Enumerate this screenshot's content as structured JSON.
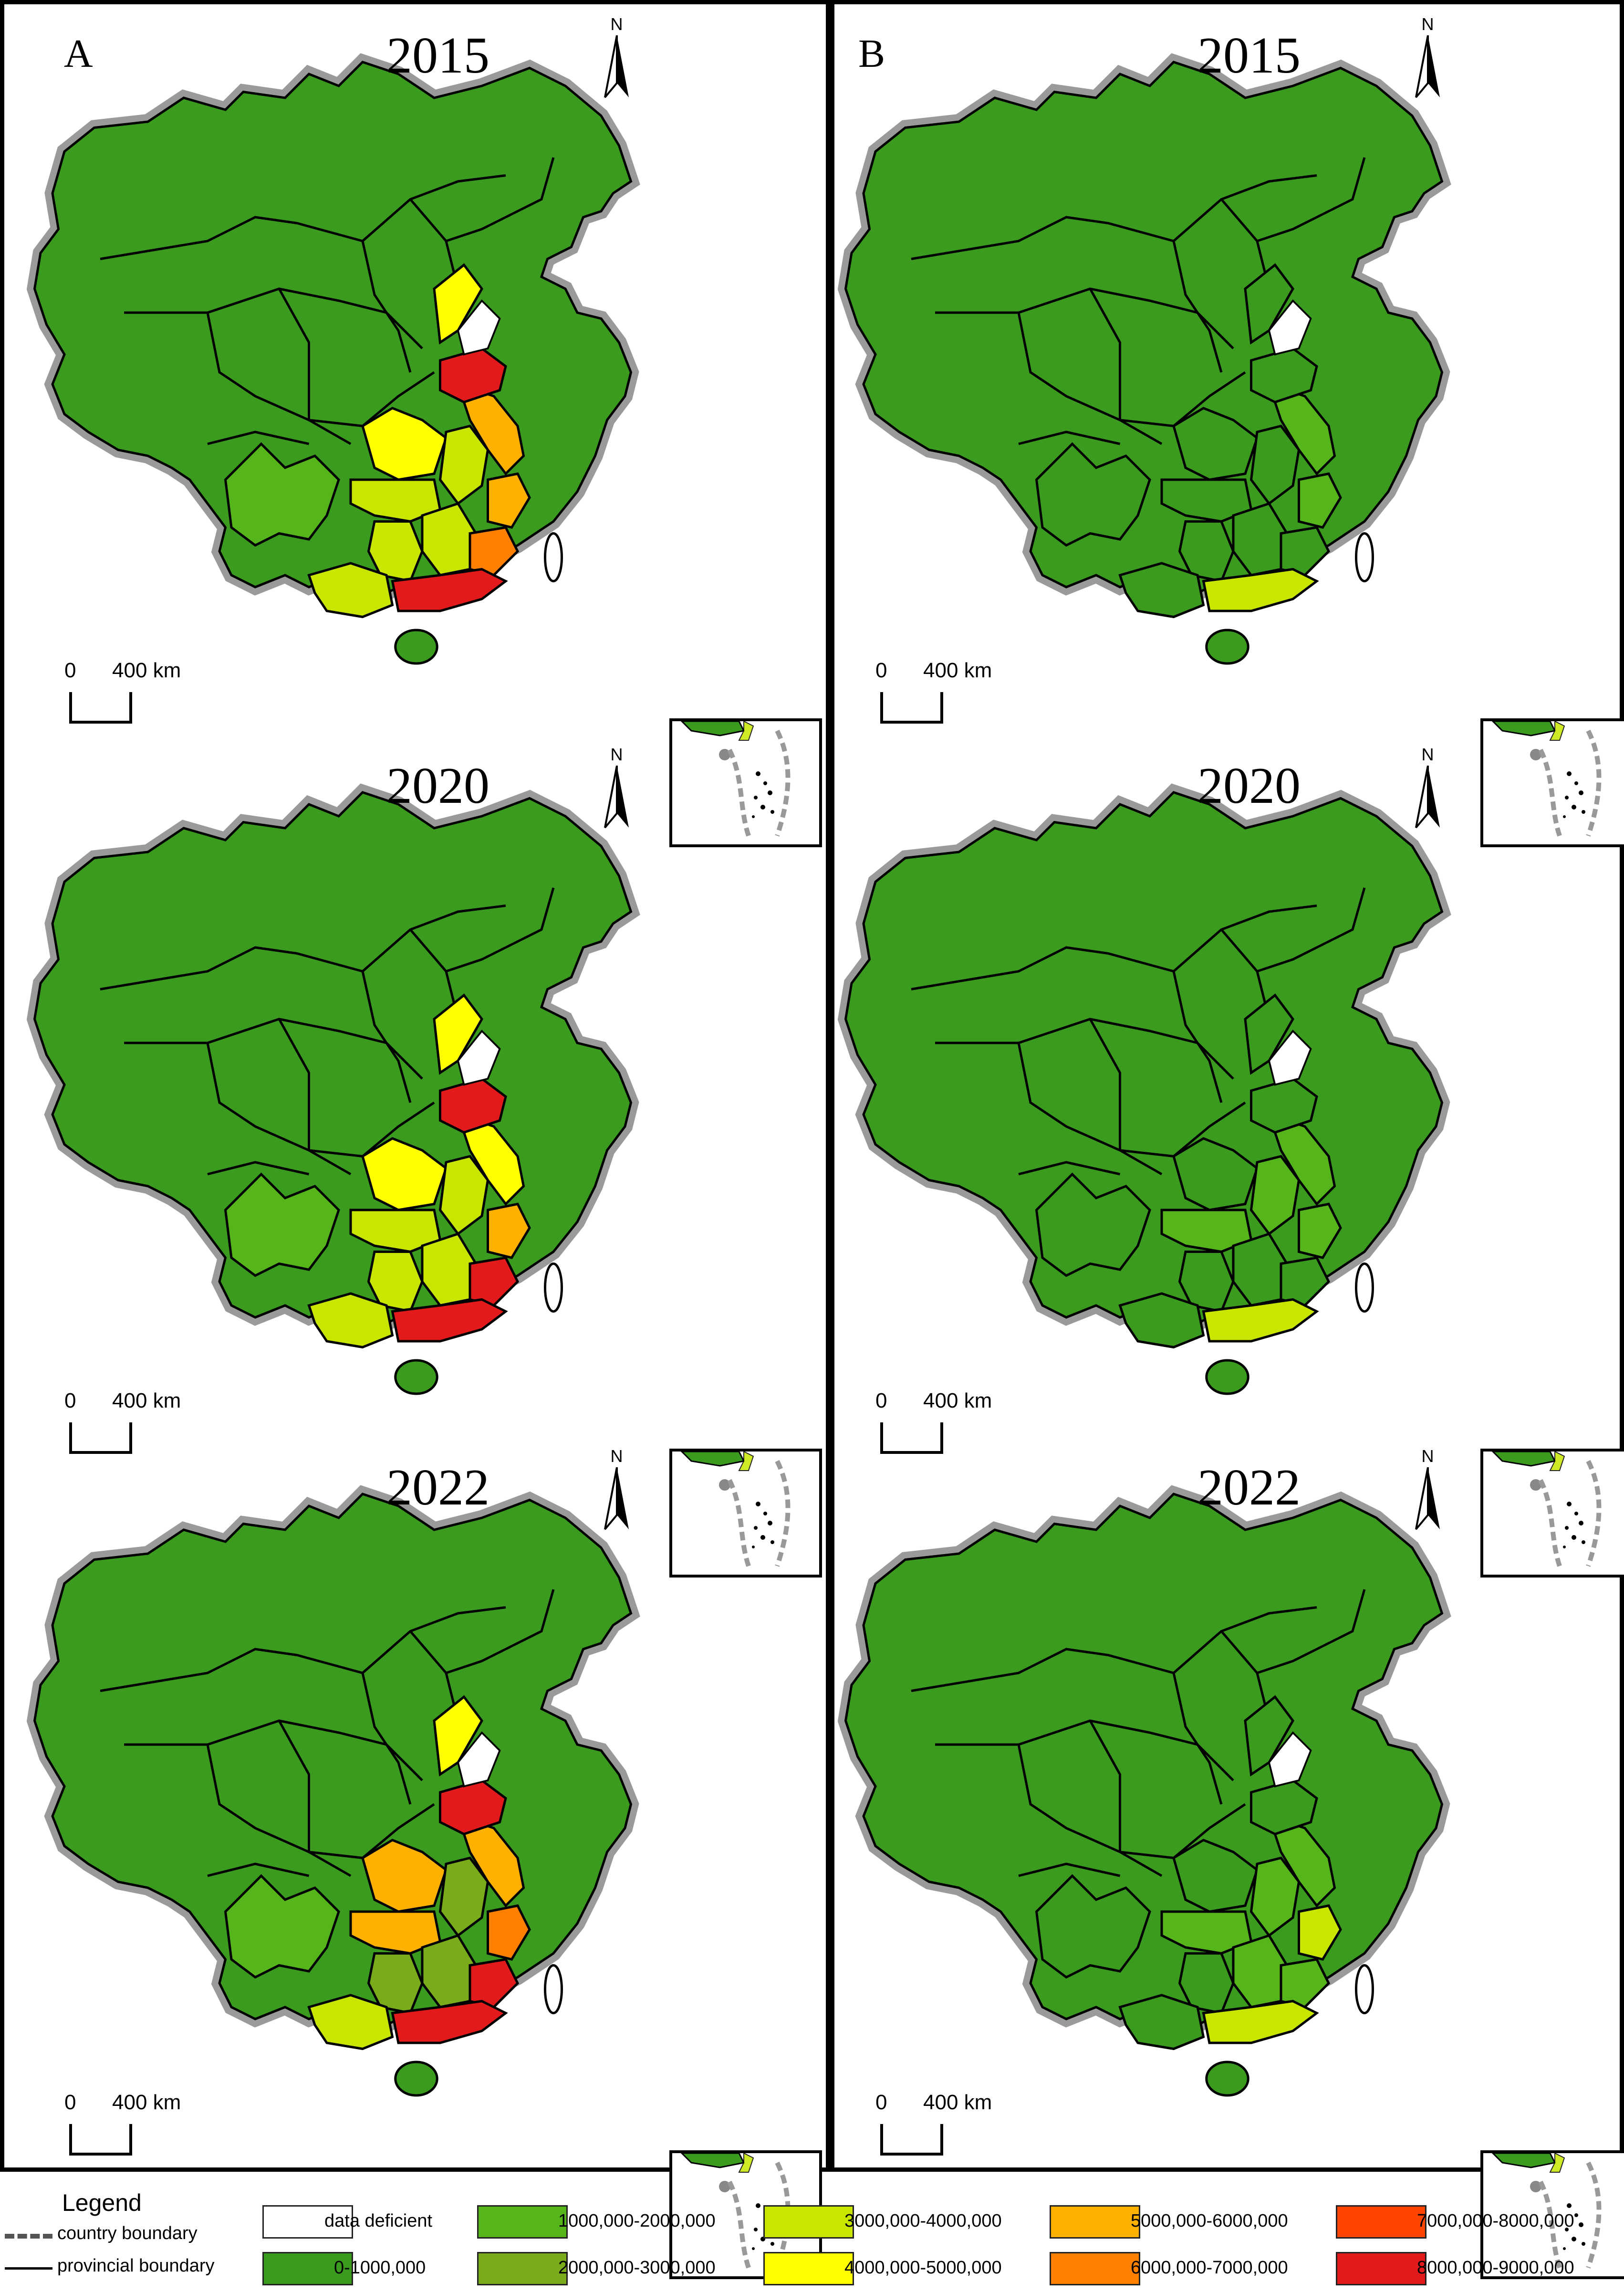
{
  "panels": [
    {
      "label": "A",
      "maps": [
        {
          "year": "2015",
          "colors": {
            "hebei": "#ffff00",
            "shandong": "#e31a1c",
            "jiangsu": "#ffb000",
            "anhui": "#c8e600",
            "zhejiang": "#ffb000",
            "henan": "#ffff00",
            "hubei": "#c8e600",
            "hunan": "#c8e600",
            "jiangxi": "#c8e600",
            "fujian": "#ff8000",
            "guangxi": "#c8e600",
            "guangdong": "#e31a1c",
            "sichuan": "#55b51b"
          }
        },
        {
          "year": "2020",
          "colors": {
            "hebei": "#ffff00",
            "shandong": "#e31a1c",
            "jiangsu": "#ffff00",
            "anhui": "#c8e600",
            "zhejiang": "#ffb000",
            "henan": "#ffff00",
            "hubei": "#c8e600",
            "hunan": "#c8e600",
            "jiangxi": "#c8e600",
            "fujian": "#e31a1c",
            "guangxi": "#c8e600",
            "guangdong": "#e31a1c",
            "sichuan": "#55b51b"
          }
        },
        {
          "year": "2022",
          "colors": {
            "hebei": "#ffff00",
            "shandong": "#e31a1c",
            "jiangsu": "#ffb000",
            "anhui": "#7aab1a",
            "zhejiang": "#ff8000",
            "henan": "#ffb000",
            "hubei": "#ffb000",
            "hunan": "#7aab1a",
            "jiangxi": "#7aab1a",
            "fujian": "#e31a1c",
            "guangxi": "#c8e600",
            "guangdong": "#e31a1c",
            "sichuan": "#55b51b"
          }
        }
      ]
    },
    {
      "label": "B",
      "maps": [
        {
          "year": "2015",
          "colors": {
            "jiangsu": "#55b51b",
            "zhejiang": "#55b51b",
            "guangdong": "#c8e600"
          }
        },
        {
          "year": "2020",
          "colors": {
            "jiangsu": "#55b51b",
            "zhejiang": "#55b51b",
            "hubei": "#55b51b",
            "guangdong": "#c8e600",
            "anhui": "#55b51b"
          }
        },
        {
          "year": "2022",
          "colors": {
            "jiangsu": "#55b51b",
            "zhejiang": "#c8e600",
            "hubei": "#55b51b",
            "jiangxi": "#55b51b",
            "guangdong": "#c8e600",
            "anhui": "#55b51b",
            "fujian": "#55b51b"
          }
        }
      ]
    }
  ],
  "map_labels": {
    "north": "N",
    "scale_zero": "0",
    "scale_dist": "400  km"
  },
  "legend": {
    "title": "Legend",
    "lines": [
      {
        "label": "country  boundary",
        "style": "dashed"
      },
      {
        "label": "provincial boundary",
        "style": "solid"
      }
    ],
    "classes": [
      {
        "label": "data  deficient",
        "color": "#ffffff"
      },
      {
        "label": "0-1000,000",
        "color": "#3a9b1f"
      },
      {
        "label": "1000,000-2000,000",
        "color": "#55b51b"
      },
      {
        "label": "2000,000-3000,000",
        "color": "#7aab1a"
      },
      {
        "label": "3000,000-4000,000",
        "color": "#c8e600"
      },
      {
        "label": "4000,000-5000,000",
        "color": "#ffff00"
      },
      {
        "label": "5000,000-6000,000",
        "color": "#ffb000"
      },
      {
        "label": "6000,000-7000,000",
        "color": "#ff8000"
      },
      {
        "label": "7000,000-8000,000",
        "color": "#ff4500"
      },
      {
        "label": "8000,000-9000,000",
        "color": "#e31a1c"
      }
    ]
  },
  "base_color": "#3a9b1f",
  "boundary_halo_color": "#9a9a9a"
}
